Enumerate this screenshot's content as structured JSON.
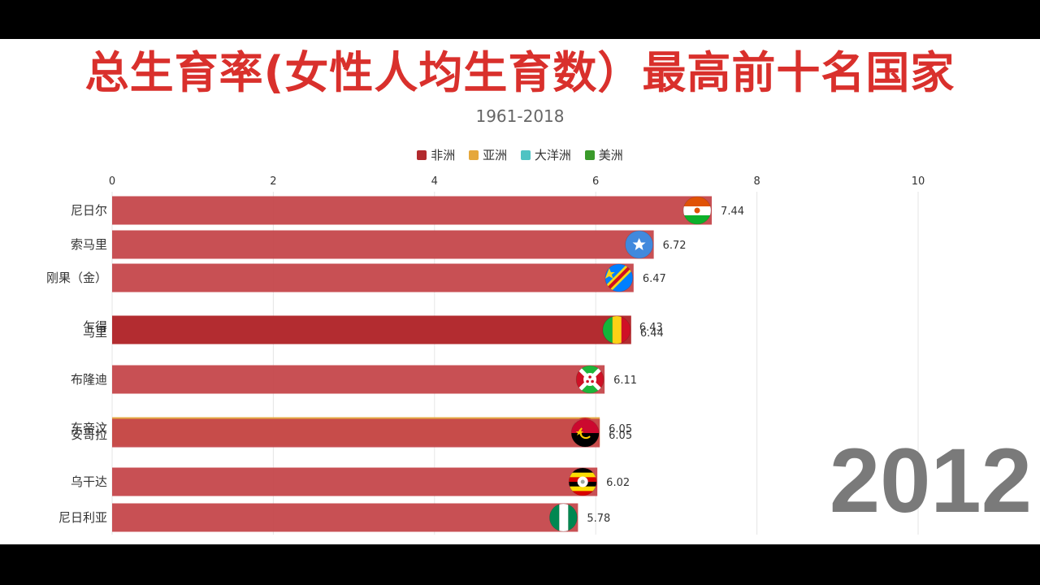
{
  "chart_data": {
    "type": "bar",
    "orientation": "horizontal",
    "title": "总生育率(女性人均生育数）最高前十名国家",
    "subtitle": "1961-2018",
    "year": "2012",
    "xlim": [
      0,
      10
    ],
    "x_ticks": [
      0,
      2,
      4,
      6,
      8,
      10
    ],
    "grid": true,
    "legend_position": "top-center",
    "legend": [
      {
        "name": "非洲",
        "color": "#b22a2e"
      },
      {
        "name": "亚洲",
        "color": "#e5a73b"
      },
      {
        "name": "大洋洲",
        "color": "#4fc3c3"
      },
      {
        "name": "美洲",
        "color": "#3a9a2a"
      }
    ],
    "bars": [
      {
        "label": "尼日尔",
        "value": 7.44,
        "value_label": "7.44",
        "color": "#c5474b",
        "flag": "niger"
      },
      {
        "label": "索马里",
        "value": 6.72,
        "value_label": "6.72",
        "color": "#c5474b",
        "flag": "somalia"
      },
      {
        "label": "刚果（金）",
        "value": 6.47,
        "value_label": "6.47",
        "color": "#c5474b",
        "flag": "drc"
      },
      {
        "label": "乍得",
        "value": 6.43,
        "value_label": "6.43",
        "color": "#c5474b",
        "flag": "chad"
      },
      {
        "label": "马里",
        "value": 6.44,
        "value_label": "6.44",
        "color": "#b22a2e",
        "flag": "mali"
      },
      {
        "label": "布隆迪",
        "value": 6.11,
        "value_label": "6.11",
        "color": "#c5474b",
        "flag": "burundi"
      },
      {
        "label": "东帝汶",
        "value": 6.05,
        "value_label": "6.05",
        "color": "#e5a73b",
        "flag": "timor-leste"
      },
      {
        "label": "安哥拉",
        "value": 6.05,
        "value_label": "6.05",
        "color": "#c5474b",
        "flag": "angola"
      },
      {
        "label": "乌干达",
        "value": 6.02,
        "value_label": "6.02",
        "color": "#c5474b",
        "flag": "uganda"
      },
      {
        "label": "尼日利亚",
        "value": 5.78,
        "value_label": "5.78",
        "color": "#c5474b",
        "flag": "nigeria"
      }
    ]
  }
}
